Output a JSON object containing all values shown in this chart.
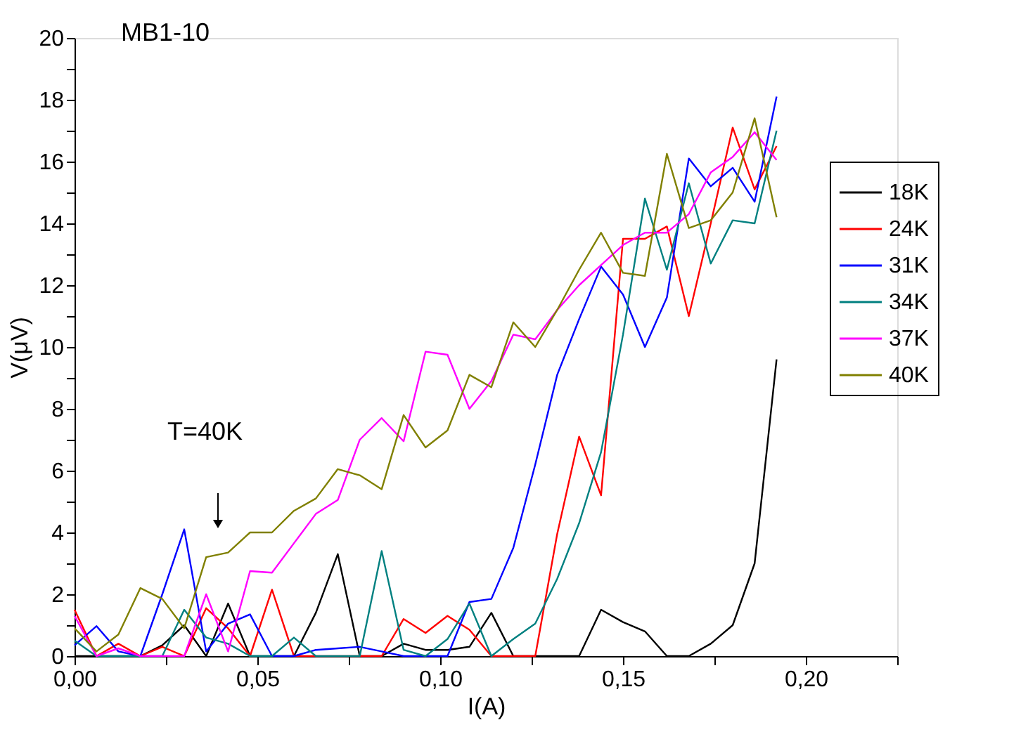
{
  "chart_data": {
    "type": "line",
    "xlabel": "I(A)",
    "ylabel": "V(μV)",
    "x": [
      0,
      0.006,
      0.012,
      0.018,
      0.024,
      0.03,
      0.036,
      0.042,
      0.048,
      0.054,
      0.06,
      0.066,
      0.072,
      0.078,
      0.084,
      0.09,
      0.096,
      0.102,
      0.108,
      0.114,
      0.12,
      0.126,
      0.132,
      0.138,
      0.144,
      0.15,
      0.156,
      0.162,
      0.168,
      0.174,
      0.18,
      0.186,
      0.192
    ],
    "series": [
      {
        "name": "18K",
        "color": "#000000",
        "values": [
          0,
          0,
          0,
          0,
          0.35,
          1.0,
          0,
          1.7,
          0,
          0,
          0,
          1.4,
          3.3,
          0,
          0,
          0.4,
          0.2,
          0.2,
          0.3,
          1.4,
          0,
          0,
          0,
          0,
          1.5,
          1.1,
          0.8,
          0,
          0,
          0.4,
          1.0,
          3.0,
          9.6
        ]
      },
      {
        "name": "24K",
        "color": "#ff0000",
        "values": [
          1.5,
          0,
          0.4,
          0,
          0.3,
          0,
          1.55,
          0.9,
          0,
          2.15,
          0,
          0,
          0,
          0,
          0,
          1.2,
          0.75,
          1.3,
          0.85,
          0,
          0,
          0,
          3.95,
          7.1,
          5.2,
          13.5,
          13.5,
          13.9,
          11.0,
          14.0,
          17.1,
          15.1,
          16.5
        ]
      },
      {
        "name": "31K",
        "color": "#0000ff",
        "values": [
          0.35,
          0.97,
          0.15,
          0,
          2.0,
          4.1,
          0.15,
          1.05,
          1.35,
          0,
          0,
          0.2,
          0.25,
          0.3,
          0.15,
          0,
          0,
          0,
          1.75,
          1.85,
          3.5,
          6.2,
          9.1,
          10.9,
          12.6,
          11.7,
          10.0,
          11.6,
          16.1,
          15.2,
          15.8,
          14.7,
          18.1
        ]
      },
      {
        "name": "34K",
        "color": "#008080",
        "values": [
          0.5,
          0,
          0,
          0,
          0,
          1.5,
          0.6,
          0.4,
          0,
          0,
          0.6,
          0,
          0,
          0,
          3.4,
          0.2,
          0,
          0.55,
          1.7,
          0,
          0.55,
          1.05,
          2.5,
          4.3,
          6.6,
          10.4,
          14.8,
          12.5,
          15.3,
          12.7,
          14.1,
          14.0,
          17.0
        ]
      },
      {
        "name": "37K",
        "color": "#ff00ff",
        "values": [
          1.3,
          0,
          0.25,
          0,
          0,
          0,
          2.0,
          0.15,
          2.75,
          2.7,
          3.65,
          4.6,
          5.05,
          7.0,
          7.7,
          6.95,
          9.85,
          9.75,
          8.0,
          8.9,
          10.4,
          10.25,
          11.2,
          12.0,
          12.65,
          13.3,
          13.7,
          13.7,
          14.3,
          15.65,
          16.15,
          16.95,
          16.05
        ]
      },
      {
        "name": "40K",
        "color": "#808000",
        "values": [
          0.9,
          0.15,
          0.7,
          2.2,
          1.85,
          0.9,
          3.2,
          3.35,
          4.0,
          4.0,
          4.7,
          5.1,
          6.05,
          5.85,
          5.4,
          7.8,
          6.75,
          7.3,
          9.1,
          8.7,
          10.8,
          10.0,
          11.2,
          12.5,
          13.7,
          12.4,
          12.3,
          16.25,
          13.85,
          14.1,
          15.0,
          17.4,
          14.2
        ]
      }
    ],
    "xlim": [
      0,
      0.225
    ],
    "xticks": [
      {
        "value": 0,
        "label": "0,00"
      },
      {
        "value": 0.025,
        "label": null
      },
      {
        "value": 0.05,
        "label": "0,05"
      },
      {
        "value": 0.075,
        "label": null
      },
      {
        "value": 0.1,
        "label": "0,10"
      },
      {
        "value": 0.125,
        "label": null
      },
      {
        "value": 0.15,
        "label": "0,15"
      },
      {
        "value": 0.175,
        "label": null
      },
      {
        "value": 0.2,
        "label": "0,20"
      },
      {
        "value": 0.225,
        "label": null
      }
    ],
    "ylim": [
      0,
      20
    ],
    "yticks": [
      0,
      {
        "value": 1,
        "label": null
      },
      2,
      {
        "value": 3,
        "label": null
      },
      4,
      {
        "value": 5,
        "label": null
      },
      6,
      {
        "value": 7,
        "label": null
      },
      8,
      {
        "value": 9,
        "label": null
      },
      10,
      {
        "value": 11,
        "label": null
      },
      12,
      {
        "value": 13,
        "label": null
      },
      14,
      {
        "value": 15,
        "label": null
      },
      16,
      {
        "value": 17,
        "label": null
      },
      18,
      {
        "value": 19,
        "label": null
      },
      20
    ],
    "annotations": [
      "MB1-10",
      "T=40K"
    ],
    "legend": "right",
    "grid": false,
    "marker": "none",
    "line_style": "solid"
  }
}
